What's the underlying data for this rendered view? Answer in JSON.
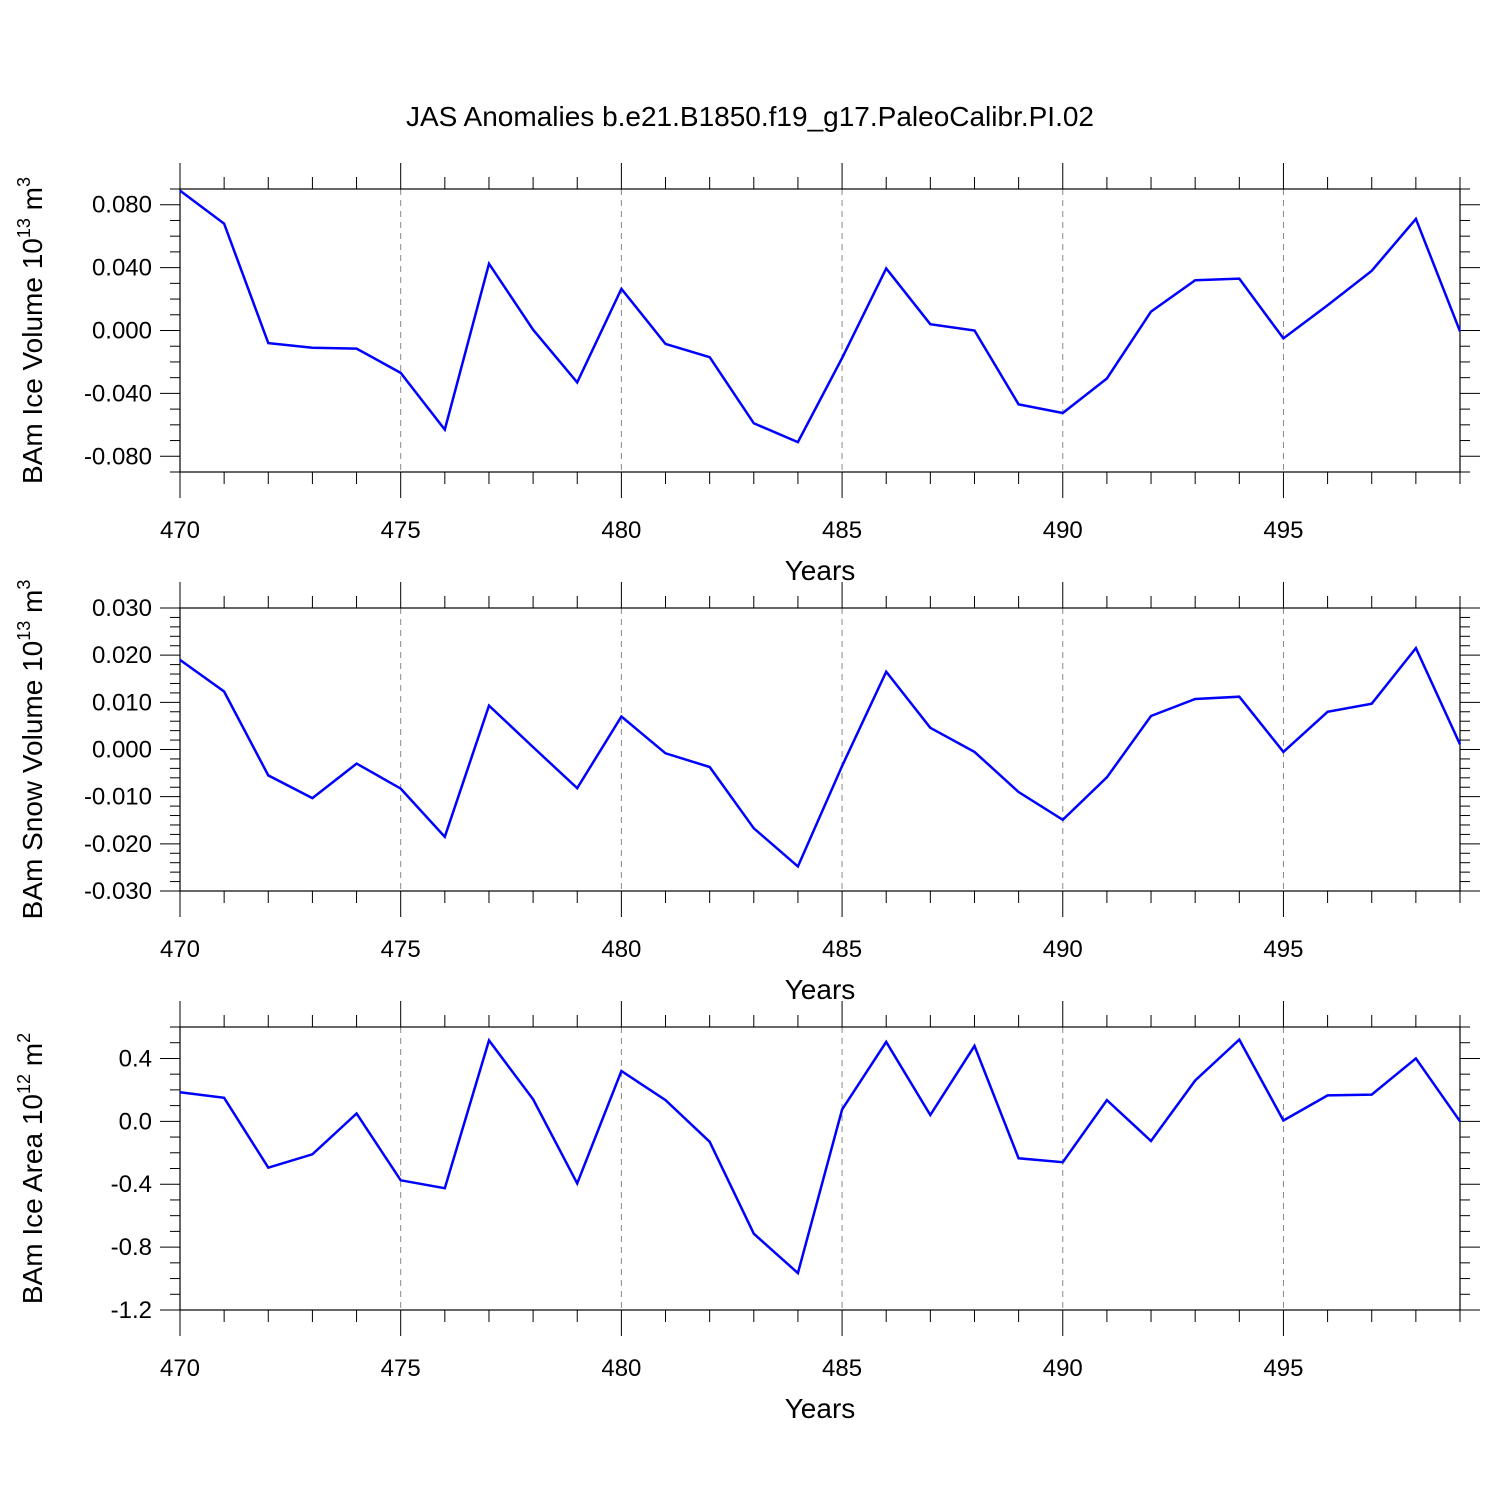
{
  "title": "JAS Anomalies b.e21.B1850.f19_g17.PaleoCalibr.PI.02",
  "line_color": "#0000ff",
  "chart_data": [
    {
      "type": "line",
      "ylabel": {
        "base": "BAm Ice Volume 10",
        "exp": "13",
        "unit": " m",
        "unit_exp": "3"
      },
      "xlabel": "Years",
      "xlim": [
        470,
        499
      ],
      "ylim": [
        -0.09,
        0.09
      ],
      "x_ticks": [
        "470",
        "475",
        "480",
        "485",
        "490",
        "495"
      ],
      "y_ticks": [
        "-0.080",
        "-0.040",
        "0.000",
        "0.040",
        "0.080"
      ],
      "y_tick_values": [
        -0.08,
        -0.04,
        0.0,
        0.04,
        0.08
      ],
      "y_minor_step": 0.01,
      "x": [
        470,
        471,
        472,
        473,
        474,
        475,
        476,
        477,
        478,
        479,
        480,
        481,
        482,
        483,
        484,
        485,
        486,
        487,
        488,
        489,
        490,
        491,
        492,
        493,
        494,
        495,
        496,
        497,
        498,
        499
      ],
      "values": [
        0.089,
        0.068,
        -0.008,
        -0.011,
        -0.0115,
        -0.027,
        -0.063,
        0.0425,
        0.0005,
        -0.033,
        0.0265,
        -0.0085,
        -0.017,
        -0.059,
        -0.071,
        -0.0175,
        0.0395,
        0.004,
        0.0,
        -0.047,
        -0.0525,
        -0.0305,
        0.012,
        0.032,
        0.033,
        -0.005,
        0.016,
        0.038,
        0.071,
        -0.0005
      ]
    },
    {
      "type": "line",
      "ylabel": {
        "base": "BAm Snow Volume 10",
        "exp": "13",
        "unit": " m",
        "unit_exp": "3"
      },
      "xlabel": "Years",
      "xlim": [
        470,
        499
      ],
      "ylim": [
        -0.03,
        0.03
      ],
      "x_ticks": [
        "470",
        "475",
        "480",
        "485",
        "490",
        "495"
      ],
      "y_ticks": [
        "-0.030",
        "-0.020",
        "-0.010",
        "0.000",
        "0.010",
        "0.020",
        "0.030"
      ],
      "y_tick_values": [
        -0.03,
        -0.02,
        -0.01,
        0.0,
        0.01,
        0.02,
        0.03
      ],
      "y_minor_step": 0.002,
      "x": [
        470,
        471,
        472,
        473,
        474,
        475,
        476,
        477,
        478,
        479,
        480,
        481,
        482,
        483,
        484,
        485,
        486,
        487,
        488,
        489,
        490,
        491,
        492,
        493,
        494,
        495,
        496,
        497,
        498,
        499
      ],
      "values": [
        0.019,
        0.0123,
        -0.0055,
        -0.0103,
        -0.003,
        -0.0083,
        -0.0185,
        0.0093,
        0.0005,
        -0.0082,
        0.007,
        -0.0008,
        -0.0037,
        -0.0167,
        -0.0248,
        -0.0035,
        0.0165,
        0.0046,
        -0.0005,
        -0.009,
        -0.0149,
        -0.0059,
        0.0071,
        0.0107,
        0.0112,
        -0.0005,
        0.008,
        0.0097,
        0.0215,
        0.0011
      ]
    },
    {
      "type": "line",
      "ylabel": {
        "base": "BAm Ice Area 10",
        "exp": "12",
        "unit": " m",
        "unit_exp": "2"
      },
      "xlabel": "Years",
      "xlim": [
        470,
        499
      ],
      "ylim": [
        -1.2,
        0.6
      ],
      "x_ticks": [
        "470",
        "475",
        "480",
        "485",
        "490",
        "495"
      ],
      "y_ticks": [
        "-1.2",
        "-0.8",
        "-0.4",
        "0.0",
        "0.4"
      ],
      "y_tick_values": [
        -1.2,
        -0.8,
        -0.4,
        0.0,
        0.4
      ],
      "y_minor_step": 0.1,
      "x": [
        470,
        471,
        472,
        473,
        474,
        475,
        476,
        477,
        478,
        479,
        480,
        481,
        482,
        483,
        484,
        485,
        486,
        487,
        488,
        489,
        490,
        491,
        492,
        493,
        494,
        495,
        496,
        497,
        498,
        499
      ],
      "values": [
        0.185,
        0.15,
        -0.295,
        -0.21,
        0.05,
        -0.375,
        -0.425,
        0.515,
        0.14,
        -0.395,
        0.32,
        0.135,
        -0.13,
        -0.715,
        -0.965,
        0.075,
        0.505,
        0.04,
        0.48,
        -0.235,
        -0.26,
        0.135,
        -0.125,
        0.26,
        0.52,
        0.005,
        0.165,
        0.17,
        0.4,
        0.0
      ]
    }
  ]
}
